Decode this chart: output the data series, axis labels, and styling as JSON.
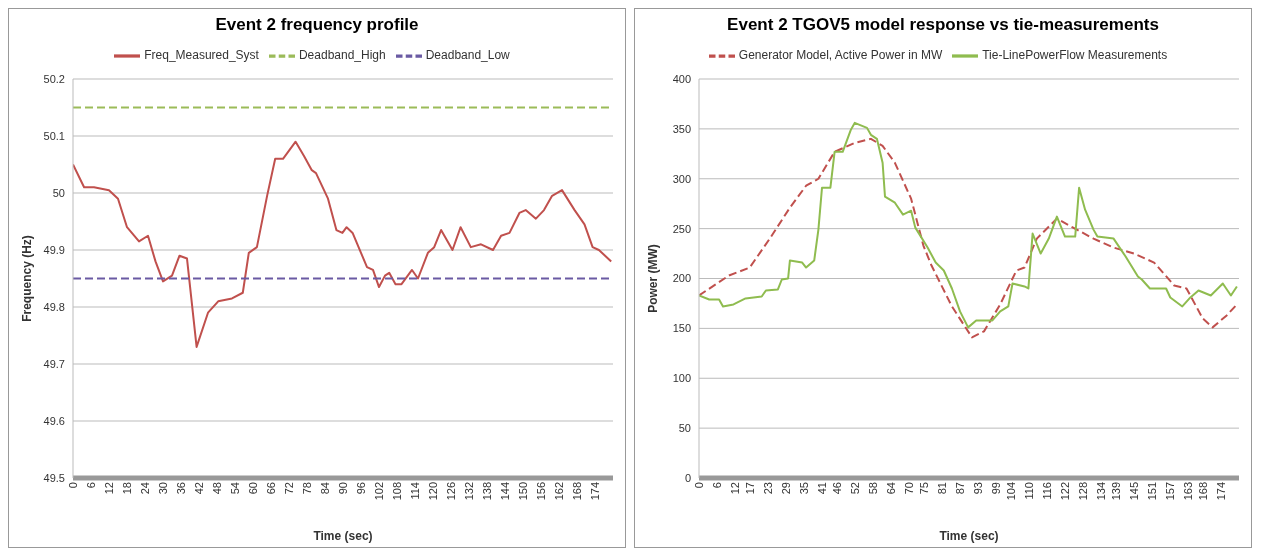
{
  "chart_data": [
    {
      "type": "line",
      "title": "Event 2 frequency profile",
      "xlabel": "Time (sec)",
      "ylabel": "Frequency (Hz)",
      "xlim": [
        0,
        180
      ],
      "ylim": [
        49.5,
        50.2
      ],
      "xticks": [
        0,
        6,
        12,
        18,
        24,
        30,
        36,
        42,
        48,
        54,
        60,
        66,
        72,
        78,
        84,
        90,
        96,
        102,
        108,
        114,
        120,
        126,
        132,
        138,
        144,
        150,
        156,
        162,
        168,
        174
      ],
      "yticks": [
        49.5,
        49.6,
        49.7,
        49.8,
        49.9,
        50,
        50.1,
        50.2
      ],
      "grid": "y",
      "legend": "top",
      "marker": "none",
      "series": [
        {
          "name": "Freq_Measured_Syst",
          "color": "#c0504d",
          "line_style": "solid",
          "x": [
            0,
            3.7,
            7,
            12,
            15,
            18,
            22,
            25,
            27.5,
            30,
            33,
            35.5,
            38,
            41.2,
            45,
            48.4,
            53,
            56.6,
            58.6,
            61.3,
            64.7,
            67.4,
            70,
            74.2,
            77,
            79.6,
            81,
            85,
            87.8,
            89.8,
            91.2,
            93.2,
            96,
            98,
            100,
            102,
            104,
            105.4,
            107.5,
            109.5,
            113,
            115,
            118.3,
            120.4,
            122.7,
            126.5,
            129.2,
            132.6,
            136,
            140,
            142.7,
            145.5,
            148.8,
            150.9,
            154.3,
            157,
            159.7,
            163,
            167.2,
            170.5,
            173.2,
            175.3,
            179.4
          ],
          "values": [
            50.05,
            50.01,
            50.01,
            50.005,
            49.99,
            49.94,
            49.915,
            49.925,
            49.88,
            49.845,
            49.855,
            49.89,
            49.885,
            49.73,
            49.79,
            49.81,
            49.815,
            49.825,
            49.895,
            49.905,
            49.995,
            50.06,
            50.06,
            50.09,
            50.065,
            50.04,
            50.035,
            49.99,
            49.935,
            49.93,
            49.94,
            49.93,
            49.895,
            49.87,
            49.865,
            49.835,
            49.855,
            49.86,
            49.84,
            49.84,
            49.865,
            49.85,
            49.895,
            49.905,
            49.935,
            49.9,
            49.94,
            49.905,
            49.91,
            49.9,
            49.925,
            49.93,
            49.965,
            49.97,
            49.955,
            49.97,
            49.995,
            50.005,
            49.97,
            49.945,
            49.905,
            49.9,
            49.88
          ]
        },
        {
          "name": "Deadband_High",
          "color": "#9bbb59",
          "line_style": "dashed",
          "x": [
            0,
            180
          ],
          "values": [
            50.15,
            50.15
          ]
        },
        {
          "name": "Deadband_Low",
          "color": "#6a5aa3",
          "line_style": "dashed",
          "x": [
            0,
            180
          ],
          "values": [
            49.85,
            49.85
          ]
        }
      ]
    },
    {
      "type": "line",
      "title": "Event 2 TGOV5 model response vs tie-measurements",
      "xlabel": "Time (sec)",
      "ylabel": "Power (MW)",
      "xlim": [
        0,
        180
      ],
      "ylim": [
        0,
        400
      ],
      "xticks": [
        0,
        6,
        12,
        17,
        23,
        29,
        35,
        41,
        46,
        52,
        58,
        64,
        70,
        75,
        81,
        87,
        93,
        99,
        104,
        110,
        116,
        122,
        128,
        134,
        139,
        145,
        151,
        157,
        163,
        168,
        174
      ],
      "yticks": [
        0,
        50,
        100,
        150,
        200,
        250,
        300,
        350,
        400
      ],
      "grid": "y",
      "legend": "top",
      "marker": "none",
      "series": [
        {
          "name": "Generator Model, Active Power in MW",
          "color": "#c0504d",
          "line_style": "dashed",
          "x": [
            0,
            10,
            16.9,
            23.6,
            30.3,
            35.7,
            39.8,
            45.2,
            51.9,
            57.3,
            61.2,
            65.3,
            70.7,
            74.8,
            77.5,
            84.3,
            91,
            95,
            100.4,
            105.8,
            108.5,
            112.6,
            119.3,
            124.7,
            131.5,
            138.2,
            145,
            151.7,
            158.4,
            162.5,
            167.9,
            171.2,
            175.9,
            179.3
          ],
          "values": [
            183,
            203,
            211,
            240,
            271,
            293,
            300,
            327,
            336,
            340,
            333,
            316,
            280,
            233,
            213,
            172,
            141,
            147,
            174,
            208,
            211,
            240,
            260,
            251,
            240,
            231,
            225,
            216,
            193,
            190,
            160,
            151,
            163,
            174
          ]
        },
        {
          "name": "Tie-LinePowerFlow Measurements",
          "color": "#8fbc4f",
          "line_style": "solid",
          "x": [
            0,
            3.4,
            6.7,
            8,
            11.5,
            15.5,
            20.9,
            22.3,
            26.3,
            27.6,
            29.7,
            30.3,
            34.4,
            35.7,
            38.4,
            39.8,
            41,
            43.8,
            45.2,
            47.9,
            50.6,
            51.9,
            56,
            57.3,
            59.3,
            61.2,
            62,
            65.3,
            68,
            70.7,
            72.1,
            76.2,
            78.9,
            81.6,
            84.3,
            87,
            89.7,
            92.4,
            97.8,
            100.4,
            103.1,
            104.5,
            108.5,
            109.8,
            111.2,
            113.9,
            116.6,
            119.3,
            122,
            125.4,
            126.7,
            128.7,
            131.5,
            132.8,
            138.2,
            142.2,
            146.3,
            147.6,
            150.3,
            155.7,
            157.1,
            161.1,
            163.8,
            166.5,
            170.6,
            174.6,
            177.3,
            179.3
          ],
          "values": [
            183,
            179,
            179,
            172,
            174,
            180,
            182,
            188,
            189,
            199,
            200,
            218,
            216,
            211,
            218,
            249,
            291,
            291,
            327,
            327,
            349,
            356,
            351,
            344,
            340,
            316,
            282,
            276,
            264,
            268,
            251,
            231,
            216,
            208,
            190,
            167,
            151,
            158,
            158,
            167,
            172,
            195,
            192,
            190,
            245,
            225,
            240,
            262,
            242,
            242,
            291,
            269,
            249,
            242,
            240,
            222,
            202,
            199,
            190,
            190,
            181,
            172,
            181,
            188,
            183,
            195,
            183,
            192
          ]
        }
      ]
    }
  ]
}
